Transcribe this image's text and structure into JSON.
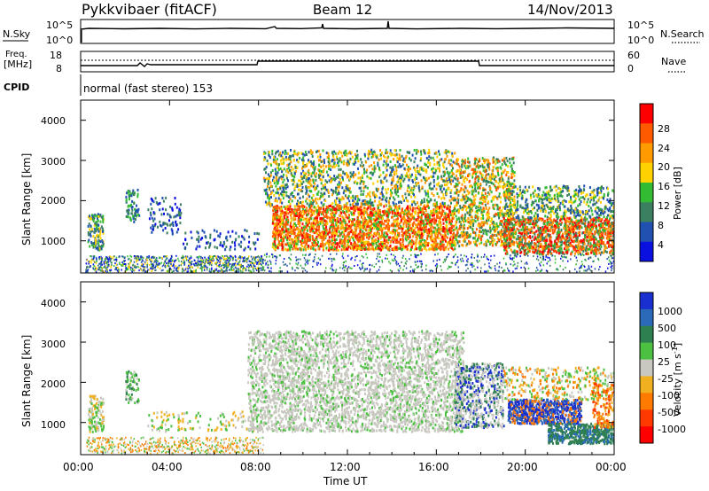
{
  "header": {
    "station": "Pykkvibaer (fitACF)",
    "beam": "Beam 12",
    "date": "14/Nov/2013"
  },
  "status_panels": {
    "noise": {
      "left_label": "N.Sky",
      "left_ticks": [
        "10^5",
        "10^0"
      ],
      "right_label": "N.Search",
      "right_ticks": [
        "10^5",
        "10^0"
      ]
    },
    "freq": {
      "left_label_1": "Freq.",
      "left_label_2": "[MHz]",
      "left_ticks": [
        "18",
        "8"
      ],
      "right_label": "Nave",
      "right_ticks": [
        "60",
        "0"
      ]
    },
    "cpid": {
      "label": "CPID",
      "text": "normal (fast stereo) 153"
    }
  },
  "axes": {
    "x_ticks": [
      "00:00",
      "04:00",
      "08:00",
      "12:00",
      "16:00",
      "20:00",
      "00:00"
    ],
    "x_label": "Time UT",
    "y_ticks": [
      "1000",
      "2000",
      "3000",
      "4000"
    ],
    "y_label": "Slant Range [km]"
  },
  "colorbars": {
    "power": {
      "label": "Power [dB]",
      "ticks": [
        "28",
        "24",
        "20",
        "16",
        "12",
        "8",
        "4"
      ],
      "colors": [
        "#ff0000",
        "#ff5a00",
        "#ff9a00",
        "#ffd200",
        "#33bb33",
        "#3a8060",
        "#2050b0",
        "#0a10e0"
      ]
    },
    "velocity": {
      "label": "Velocity [m s",
      "label_sup": "-1",
      "label_end": "]",
      "ticks": [
        "1000",
        "500",
        "100",
        "25",
        "-25",
        "-100",
        "-500",
        "-1000"
      ],
      "colors": [
        "#1a2fd0",
        "#2a6ab8",
        "#2f8050",
        "#4cc040",
        "#c8c8c0",
        "#f0b020",
        "#ff7a00",
        "#ff3a00",
        "#ff0000"
      ]
    }
  },
  "chart_data": {
    "type": "heatmap",
    "title": "Pykkvibaer (fitACF)",
    "xlabel": "Time UT",
    "ylabel": "Slant Range [km]",
    "xlim_hours": [
      0,
      24
    ],
    "ylim_km": [
      200,
      4500
    ],
    "panels": [
      "Power [dB]",
      "Velocity [m s-1]"
    ]
  }
}
